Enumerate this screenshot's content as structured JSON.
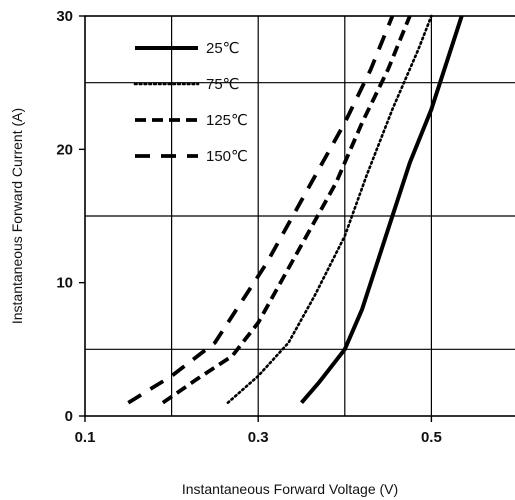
{
  "chart_data": {
    "type": "line",
    "title": "",
    "xlabel": "Instantaneous Forward Voltage (V)",
    "ylabel": "Instantaneous Forward Current (A)",
    "xlim": [
      0.1,
      0.6
    ],
    "ylim": [
      0,
      30
    ],
    "xticks": [
      "0.1",
      "0.3",
      "0.5"
    ],
    "xtick_values": [
      0.1,
      0.3,
      0.5
    ],
    "yticks": [
      "0",
      "10",
      "20",
      "30"
    ],
    "ytick_values": [
      0,
      10,
      20,
      30
    ],
    "grid": true,
    "grid_x_values": [
      0.2,
      0.3,
      0.4,
      0.5
    ],
    "grid_y_values": [
      5,
      15,
      25
    ],
    "legend_position": "top-left",
    "line_color": "#000000",
    "series": [
      {
        "name": "25℃",
        "dash": "solid",
        "points": [
          [
            0.35,
            1
          ],
          [
            0.37,
            2.5
          ],
          [
            0.4,
            5
          ],
          [
            0.42,
            8
          ],
          [
            0.45,
            14
          ],
          [
            0.475,
            19
          ],
          [
            0.5,
            23
          ],
          [
            0.52,
            27
          ],
          [
            0.535,
            30
          ]
        ]
      },
      {
        "name": "75℃",
        "dash": "dotted",
        "points": [
          [
            0.265,
            1
          ],
          [
            0.3,
            3
          ],
          [
            0.335,
            5.5
          ],
          [
            0.365,
            9
          ],
          [
            0.4,
            13.5
          ],
          [
            0.425,
            18
          ],
          [
            0.455,
            23
          ],
          [
            0.485,
            27.5
          ],
          [
            0.5,
            30
          ]
        ]
      },
      {
        "name": "125℃",
        "dash": "dashed",
        "points": [
          [
            0.19,
            1
          ],
          [
            0.23,
            2.8
          ],
          [
            0.27,
            4.5
          ],
          [
            0.3,
            7
          ],
          [
            0.33,
            10.5
          ],
          [
            0.36,
            14
          ],
          [
            0.39,
            17.5
          ],
          [
            0.42,
            22
          ],
          [
            0.45,
            26
          ],
          [
            0.475,
            30
          ]
        ]
      },
      {
        "name": "150℃",
        "dash": "longdash",
        "points": [
          [
            0.15,
            1
          ],
          [
            0.2,
            3
          ],
          [
            0.25,
            5.5
          ],
          [
            0.28,
            8.5
          ],
          [
            0.31,
            11.5
          ],
          [
            0.34,
            15
          ],
          [
            0.37,
            18.5
          ],
          [
            0.4,
            22
          ],
          [
            0.43,
            26
          ],
          [
            0.455,
            30
          ]
        ]
      }
    ]
  }
}
